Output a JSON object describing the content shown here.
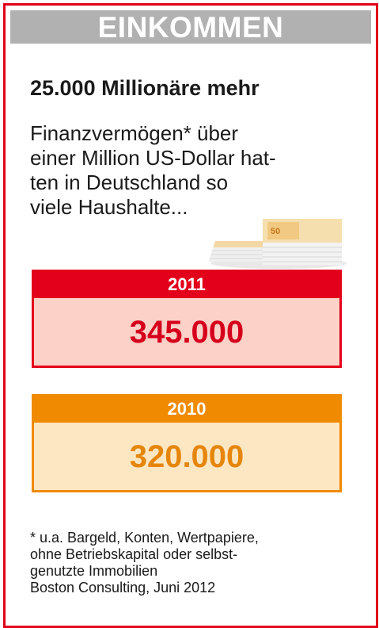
{
  "header": {
    "title": "EINKOMMEN"
  },
  "headline": "25.000 Millionäre mehr",
  "intro_lines": [
    "Finanzvermögen* über",
    "einer Million US-Dollar hat-",
    "ten in Deutschland so",
    "viele Haushalte..."
  ],
  "colors": {
    "frame": "#e2001a",
    "accent_2011": "#e2001a",
    "accent_2010": "#f08a00",
    "header_bg": "#b1b1b1"
  },
  "illustration": {
    "icon": "euro-banknote-stacks-icon",
    "banknote_text": "50"
  },
  "chart_data": {
    "type": "table",
    "rows": [
      {
        "year": "2011",
        "value_label": "345.000",
        "value": 345000
      },
      {
        "year": "2010",
        "value_label": "320.000",
        "value": 320000
      }
    ]
  },
  "footnote_lines": [
    "* u.a. Bargeld, Konten, Wertpapiere,",
    "ohne Betriebskapital oder selbst-",
    "genutzte Immobilien",
    "Boston Consulting, Juni 2012"
  ]
}
